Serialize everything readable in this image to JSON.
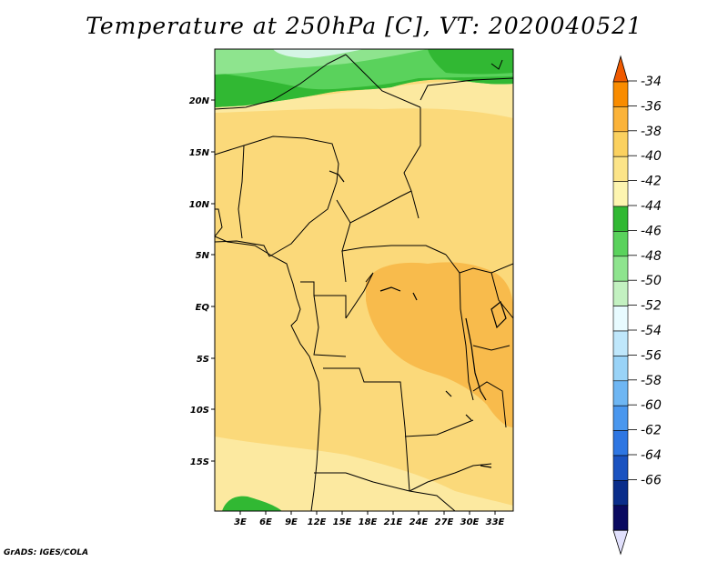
{
  "title": "Temperature at 250hPa [C], VT: 2020040521",
  "credit": "GrADS: IGES/COLA",
  "lat_ticks": [
    "20N",
    "15N",
    "10N",
    "5N",
    "EQ",
    "5S",
    "10S",
    "15S"
  ],
  "lon_ticks": [
    "3E",
    "6E",
    "9E",
    "12E",
    "15E",
    "18E",
    "21E",
    "24E",
    "27E",
    "30E",
    "33E"
  ],
  "colorbar": {
    "levels": [
      "-34",
      "-36",
      "-38",
      "-40",
      "-42",
      "-44",
      "-46",
      "-48",
      "-50",
      "-52",
      "-54",
      "-56",
      "-58",
      "-60",
      "-62",
      "-64",
      "-66"
    ],
    "colors": [
      "#f05a00",
      "#f98c00",
      "#fbb339",
      "#fbd15f",
      "#fce488",
      "#fdf5b0",
      "#31b833",
      "#5ad25c",
      "#8ee48e",
      "#c3f1c1",
      "#e8fbff",
      "#bfe7fb",
      "#99d3f7",
      "#6eb6f3",
      "#4a97ee",
      "#2e76e2",
      "#1a52c0",
      "#0a2d8a",
      "#0a0a60",
      "#e1e0fc"
    ]
  },
  "map_colors": {
    "base": "#fbd97a",
    "light": "#fce9a0",
    "orange": "#f8bb4c",
    "green_dark": "#31b833",
    "green_mid": "#5ad25c",
    "green_light": "#8ee48e",
    "pale": "#d5f5e5"
  }
}
